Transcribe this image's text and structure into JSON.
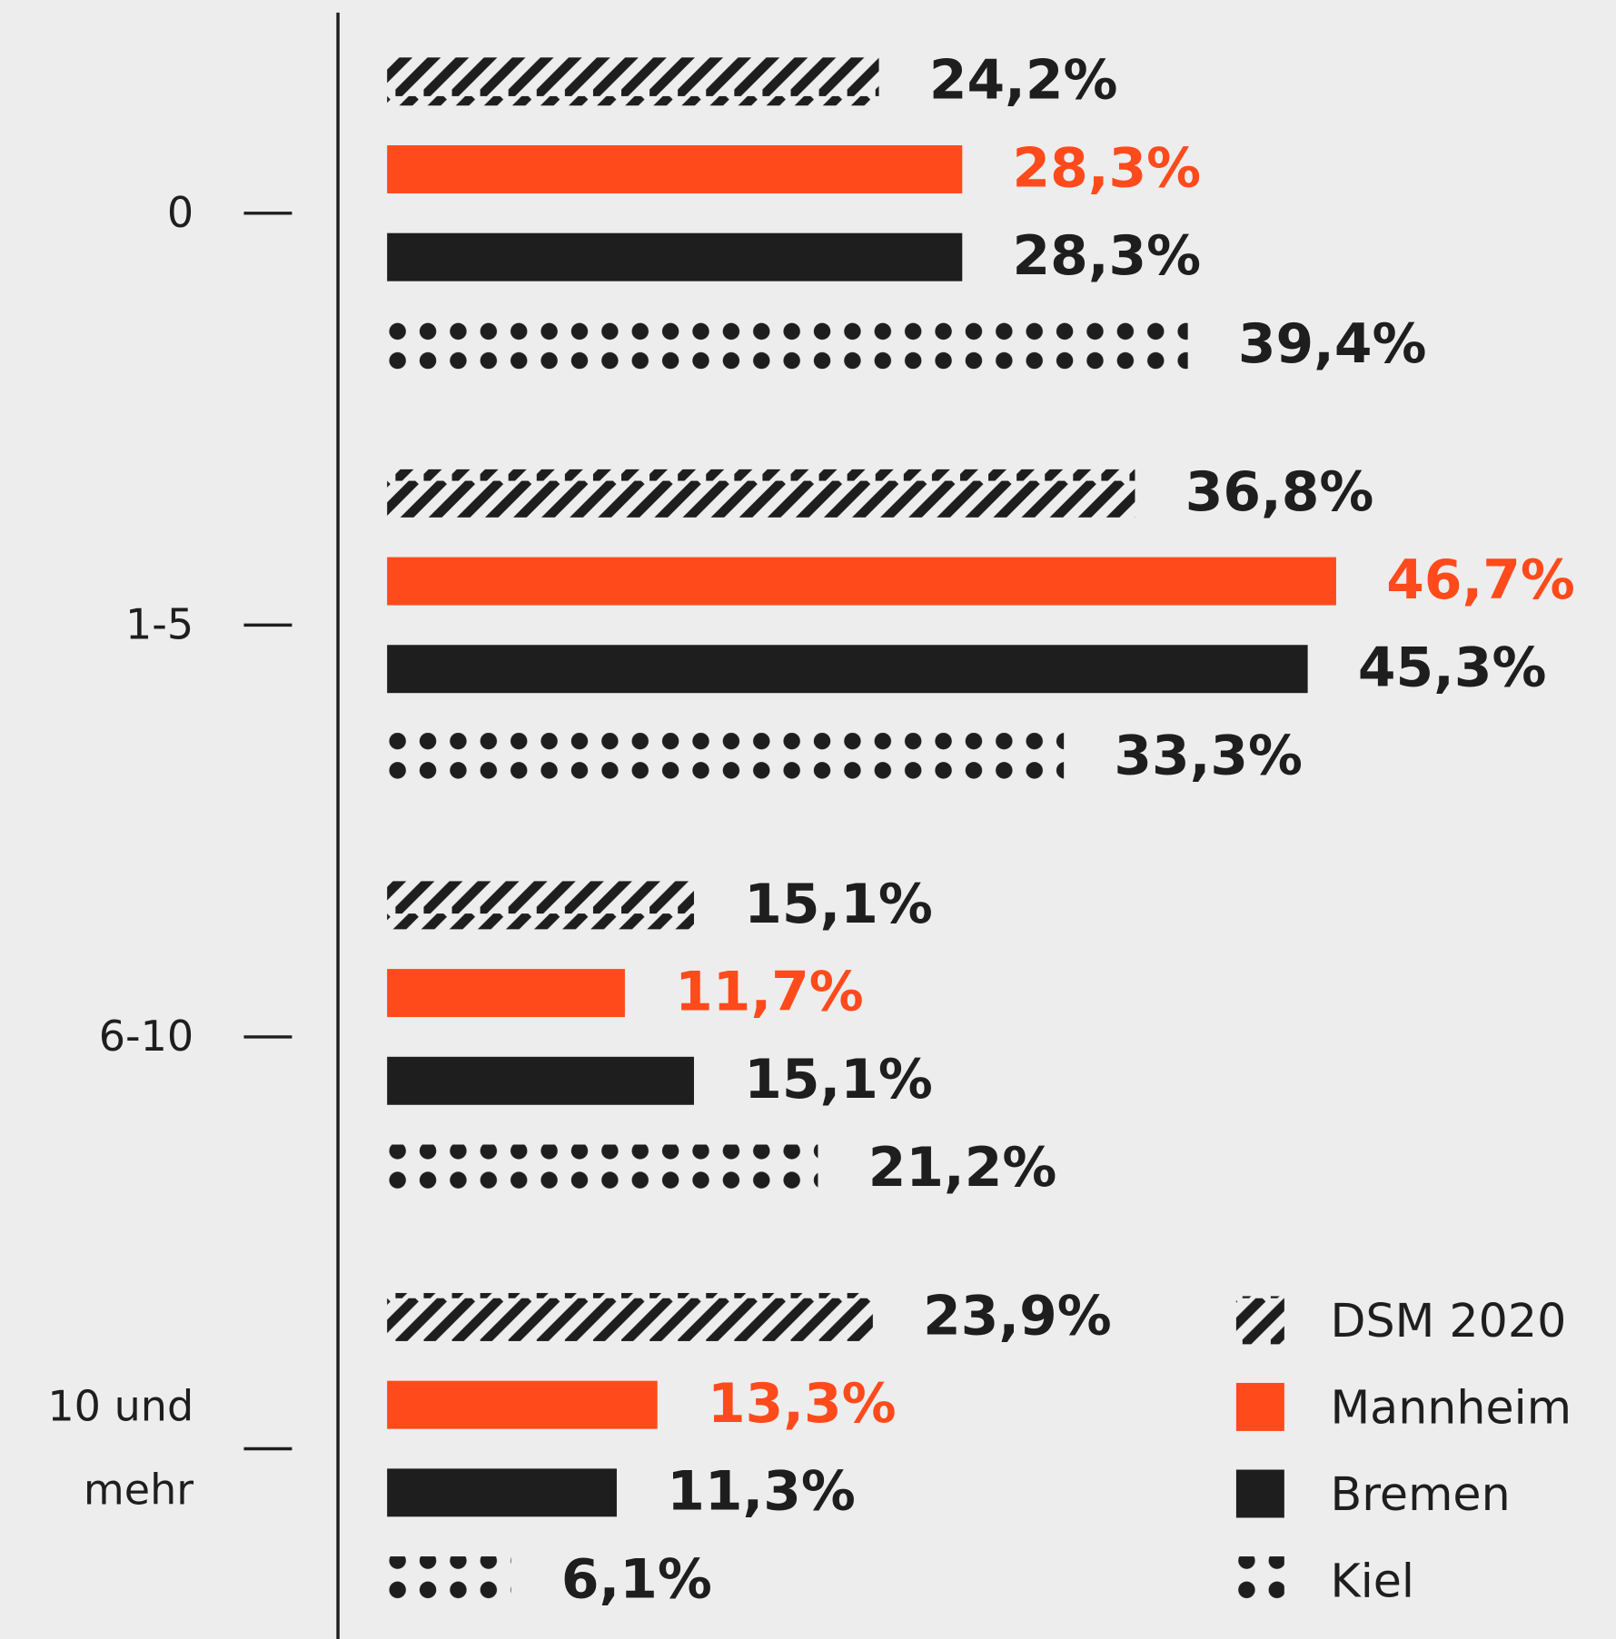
{
  "chart_data": {
    "type": "bar",
    "orientation": "horizontal",
    "categories": [
      "0",
      "1-5",
      "6-10",
      "10 und mehr"
    ],
    "series": [
      {
        "name": "DSM 2020",
        "color": "#1e1e1e",
        "pattern": "hatch",
        "values": [
          24.2,
          36.8,
          15.1,
          23.9
        ],
        "value_labels": [
          "24,2%",
          "36,8%",
          "15,1%",
          "23,9%"
        ]
      },
      {
        "name": "Mannheim",
        "color": "#ff4a1c",
        "values": [
          28.3,
          46.7,
          11.7,
          13.3
        ],
        "value_labels": [
          "28,3%",
          "46,7%",
          "11,7%",
          "13,3%"
        ]
      },
      {
        "name": "Bremen",
        "color": "#1e1e1e",
        "values": [
          28.3,
          45.3,
          15.1,
          11.3
        ],
        "value_labels": [
          "28,3%",
          "45,3%",
          "15,1%",
          "11,3%"
        ]
      },
      {
        "name": "Kiel",
        "color": "#1e1e1e",
        "pattern": "dots",
        "values": [
          39.4,
          33.3,
          21.2,
          6.1
        ],
        "value_labels": [
          "39,4%",
          "33,3%",
          "21,2%",
          "6,1%"
        ]
      }
    ],
    "legend": "bottom-right"
  }
}
